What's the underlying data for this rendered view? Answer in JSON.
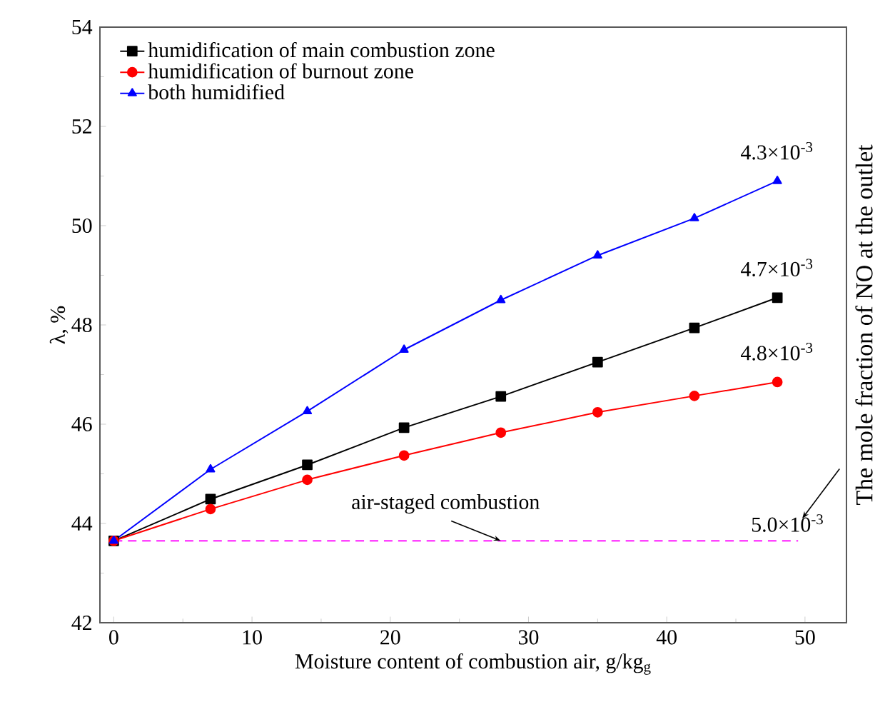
{
  "chart_data": {
    "type": "line",
    "xlabel": "Moisture content of combustion air,  g/kg$_{g}$",
    "ylabel": "λ, %",
    "y2label": "The mole fraction of NO at the outlet",
    "x": [
      0,
      7,
      14,
      21,
      28,
      35,
      42,
      48
    ],
    "series": [
      {
        "name": "humidification of main combustion zone",
        "color": "#000000",
        "marker": "square",
        "values": [
          43.65,
          44.49,
          45.18,
          45.93,
          46.56,
          47.25,
          47.94,
          48.55
        ]
      },
      {
        "name": "humidification of burnout zone",
        "color": "#ff0000",
        "marker": "circle",
        "values": [
          43.65,
          44.29,
          44.88,
          45.37,
          45.83,
          46.24,
          46.57,
          46.85
        ]
      },
      {
        "name": "both humidified",
        "color": "#0000ff",
        "marker": "triangle",
        "values": [
          43.65,
          45.09,
          46.26,
          47.5,
          48.5,
          49.4,
          50.15,
          50.9
        ]
      }
    ],
    "ref_lines": [
      {
        "axis": "y",
        "value": 43.65,
        "label": "air-staged combustion",
        "color": "#ff44ff",
        "line_style": "dashed"
      }
    ],
    "annotations": [
      "4.3×10$^{-3}$",
      "4.7×10$^{-3}$",
      "4.8×10$^{-3}$",
      "5.0×10$^{-3}$"
    ],
    "xlim": [
      -1,
      53
    ],
    "ylim": [
      42,
      54
    ],
    "xticks": [
      0,
      10,
      20,
      30,
      40,
      50
    ],
    "yticks": [
      42,
      44,
      46,
      48,
      50,
      52,
      54
    ],
    "legend": "top left",
    "line_style": "solid"
  }
}
